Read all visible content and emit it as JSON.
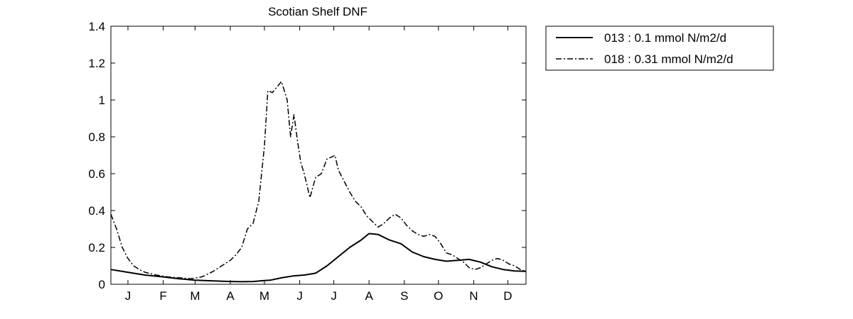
{
  "chart_data": {
    "type": "line",
    "title": "Scotian Shelf DNF",
    "xlabel": "",
    "ylabel": "",
    "ylim": [
      0,
      1.4
    ],
    "xlim": [
      0,
      365
    ],
    "grid": false,
    "legend_position": "outside-right",
    "x_ticks": [
      {
        "label": "J",
        "x": 15
      },
      {
        "label": "F",
        "x": 46
      },
      {
        "label": "M",
        "x": 74
      },
      {
        "label": "A",
        "x": 105
      },
      {
        "label": "M",
        "x": 135
      },
      {
        "label": "J",
        "x": 166
      },
      {
        "label": "J",
        "x": 196
      },
      {
        "label": "A",
        "x": 227
      },
      {
        "label": "S",
        "x": 258
      },
      {
        "label": "O",
        "x": 288
      },
      {
        "label": "N",
        "x": 319
      },
      {
        "label": "D",
        "x": 349
      }
    ],
    "y_ticks": [
      0,
      0.2,
      0.4,
      0.6,
      0.8,
      1,
      1.2,
      1.4
    ],
    "y_tick_labels": [
      "0",
      "0.2",
      "0.4",
      "0.6",
      "0.8",
      "1",
      "1.2",
      "1.4"
    ],
    "series": [
      {
        "name": "013 : 0.1 mmol N/m2/d",
        "line_style": "solid",
        "color": "#000000",
        "x": [
          0,
          15,
          30,
          46,
          60,
          74,
          90,
          105,
          115,
          125,
          135,
          140,
          150,
          160,
          170,
          180,
          190,
          200,
          210,
          220,
          227,
          235,
          245,
          255,
          265,
          275,
          285,
          295,
          305,
          315,
          325,
          335,
          345,
          355,
          365
        ],
        "y": [
          0.08,
          0.065,
          0.05,
          0.04,
          0.03,
          0.022,
          0.018,
          0.015,
          0.014,
          0.015,
          0.02,
          0.022,
          0.035,
          0.045,
          0.05,
          0.06,
          0.1,
          0.15,
          0.2,
          0.24,
          0.275,
          0.27,
          0.24,
          0.22,
          0.175,
          0.15,
          0.135,
          0.125,
          0.13,
          0.135,
          0.12,
          0.095,
          0.08,
          0.072,
          0.07
        ]
      },
      {
        "name": "018 : 0.31 mmol N/m2/d",
        "line_style": "dashdot",
        "color": "#000000",
        "x": [
          0,
          5,
          10,
          15,
          20,
          25,
          30,
          40,
          50,
          60,
          70,
          80,
          90,
          100,
          105,
          110,
          115,
          120,
          125,
          130,
          135,
          138,
          142,
          146,
          150,
          155,
          158,
          161,
          164,
          167,
          170,
          175,
          180,
          185,
          190,
          194,
          197,
          200,
          205,
          210,
          215,
          220,
          225,
          230,
          235,
          240,
          245,
          250,
          255,
          260,
          265,
          270,
          275,
          280,
          285,
          290,
          295,
          300,
          305,
          310,
          315,
          320,
          325,
          330,
          335,
          340,
          345,
          350,
          355,
          360,
          365
        ],
        "y": [
          0.38,
          0.3,
          0.2,
          0.14,
          0.1,
          0.08,
          0.065,
          0.05,
          0.04,
          0.035,
          0.03,
          0.04,
          0.07,
          0.11,
          0.13,
          0.16,
          0.2,
          0.3,
          0.33,
          0.45,
          0.75,
          1.05,
          1.04,
          1.07,
          1.1,
          1.0,
          0.8,
          0.92,
          0.78,
          0.66,
          0.6,
          0.47,
          0.58,
          0.6,
          0.68,
          0.69,
          0.7,
          0.62,
          0.56,
          0.5,
          0.45,
          0.42,
          0.37,
          0.34,
          0.31,
          0.33,
          0.36,
          0.38,
          0.36,
          0.32,
          0.29,
          0.27,
          0.26,
          0.27,
          0.26,
          0.22,
          0.17,
          0.16,
          0.14,
          0.12,
          0.09,
          0.08,
          0.09,
          0.11,
          0.13,
          0.14,
          0.13,
          0.11,
          0.1,
          0.08,
          0.07
        ]
      }
    ]
  }
}
